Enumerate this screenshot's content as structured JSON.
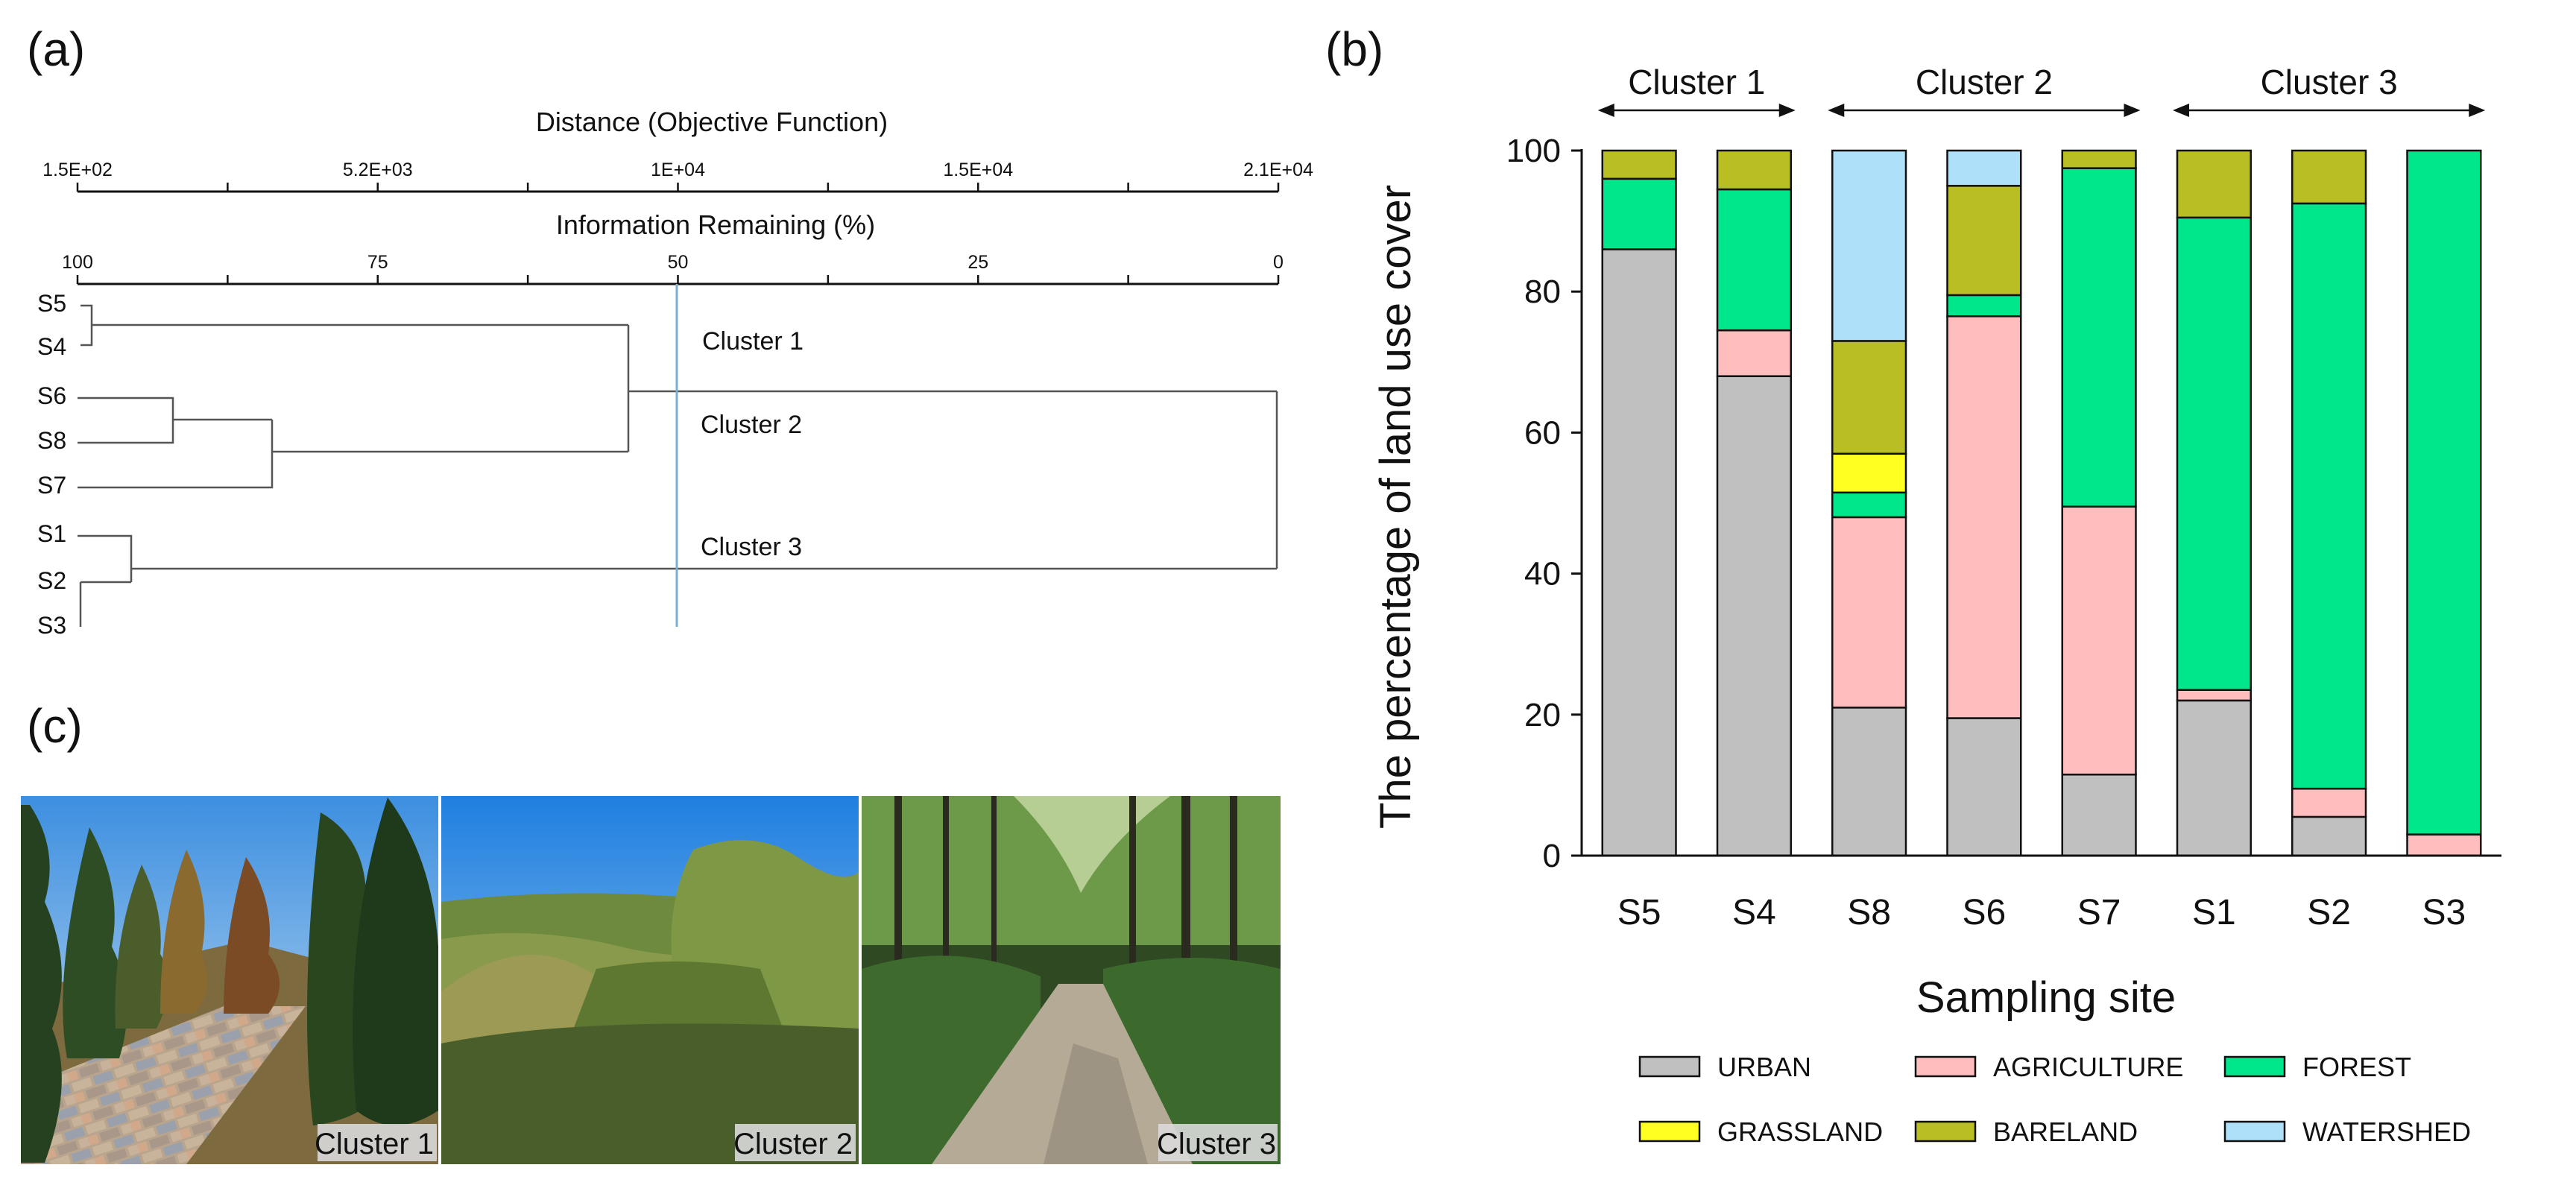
{
  "panels": {
    "a": "(a)",
    "b": "(b)",
    "c": "(c)"
  },
  "dendrogram": {
    "top_axis_title": "Distance (Objective Function)",
    "top_ticks": [
      "1.5E+02",
      "5.2E+03",
      "1E+04",
      "1.5E+04",
      "2.1E+04"
    ],
    "bottom_axis_title": "Information Remaining (%)",
    "bottom_ticks": [
      "100",
      "75",
      "50",
      "25",
      "0"
    ],
    "leaves": [
      "S5",
      "S4",
      "S6",
      "S8",
      "S7",
      "S1",
      "S2",
      "S3"
    ],
    "clusters": [
      "Cluster 1",
      "Cluster 2",
      "Cluster 3"
    ],
    "colors": {
      "lines": "#555555",
      "cut_line": "#7ab0c8"
    }
  },
  "chart_data": {
    "type": "bar",
    "stacked": true,
    "categories": [
      "S5",
      "S4",
      "S8",
      "S6",
      "S7",
      "S1",
      "S2",
      "S3"
    ],
    "cluster_groups": [
      {
        "label": "Cluster 1",
        "sites": [
          "S5",
          "S4"
        ]
      },
      {
        "label": "Cluster 2",
        "sites": [
          "S8",
          "S6",
          "S7"
        ]
      },
      {
        "label": "Cluster 3",
        "sites": [
          "S1",
          "S2",
          "S3"
        ]
      }
    ],
    "series": [
      {
        "name": "URBAN",
        "color": "#c0c0c0",
        "values": [
          86,
          68,
          21,
          19.5,
          11.5,
          22,
          5.5,
          0
        ]
      },
      {
        "name": "AGRICULTURE",
        "color": "#ffbdbd",
        "values": [
          0,
          6.5,
          27,
          57,
          38,
          1.5,
          4,
          3
        ]
      },
      {
        "name": "FOREST",
        "color": "#00e68a",
        "values": [
          10,
          20,
          3.5,
          3,
          48,
          67,
          83,
          97
        ]
      },
      {
        "name": "GRASSLAND",
        "color": "#ffff22",
        "values": [
          0,
          0,
          5.5,
          0,
          0,
          0,
          0,
          0
        ]
      },
      {
        "name": "BARELAND",
        "color": "#b9be22",
        "values": [
          4,
          5.5,
          16,
          15.5,
          2.5,
          9.5,
          7.5,
          0
        ]
      },
      {
        "name": "WATERSHED",
        "color": "#aee0fa",
        "values": [
          0,
          0,
          27,
          5,
          0,
          0,
          0,
          0
        ]
      }
    ],
    "xlabel": "Sampling site",
    "ylabel": "The percentage of land use cover",
    "ylim": [
      0,
      100
    ],
    "yticks": [
      0,
      20,
      40,
      60,
      80,
      100
    ],
    "legend_position": "bottom",
    "grid": false
  },
  "photos": [
    {
      "caption": "Cluster 1"
    },
    {
      "caption": "Cluster 2"
    },
    {
      "caption": "Cluster 3"
    }
  ]
}
